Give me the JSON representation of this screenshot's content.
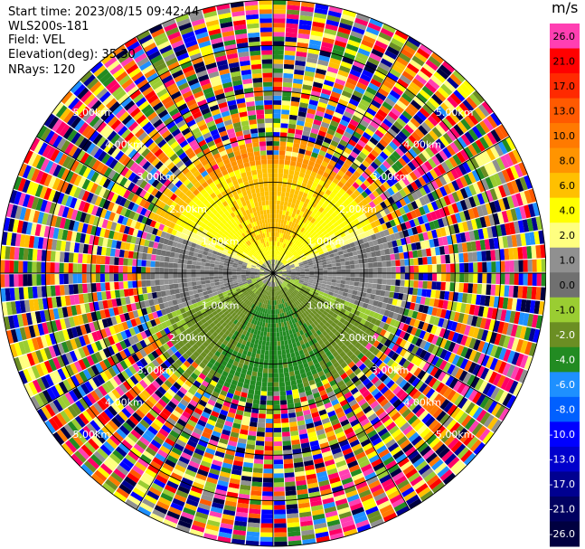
{
  "header": {
    "start_time": "Start time: 2023/08/15 09:42:44",
    "instrument": "WLS200s-181",
    "field": "Field: VEL",
    "elevation": "Elevation(deg): 35.30",
    "nrays": "NRays: 120"
  },
  "colorbar": {
    "unit": "m/s",
    "ticks": [
      "26.0",
      "21.0",
      "17.0",
      "13.0",
      "10.0",
      "8.0",
      "6.0",
      "4.0",
      "2.0",
      "1.0",
      "0.0",
      "-1.0",
      "-2.0",
      "-4.0",
      "-6.0",
      "-8.0",
      "-10.0",
      "-13.0",
      "-17.0",
      "-21.0",
      "-26.0",
      "-30.0"
    ],
    "colors": [
      "#ff3fb2",
      "#ff0000",
      "#ff2a00",
      "#ff5a00",
      "#ff7a00",
      "#ff9400",
      "#ffc000",
      "#ffff00",
      "#ffff80",
      "#909090",
      "#707070",
      "#9acd32",
      "#6b8e23",
      "#228b22",
      "#1e90ff",
      "#0060ff",
      "#0000ff",
      "#0000cc",
      "#000090",
      "#000060",
      "#000040"
    ]
  },
  "chart_data": {
    "type": "heatmap",
    "description_of_axes": "plan position indicator",
    "n_rays": 120,
    "max_range_km": 6.0,
    "rings_km": [
      1.0,
      2.0,
      3.0,
      4.0,
      5.0,
      6.0
    ],
    "spokes_deg": [
      0,
      30,
      60,
      90,
      120,
      150,
      180,
      210,
      240,
      270,
      300,
      330
    ],
    "range_labels": {
      "nw": [
        "1.00km",
        "2.00km",
        "3.00km",
        "4.00km",
        "5.00km"
      ],
      "ne": [
        "1.00km",
        "2.00km",
        "3.00km",
        "4.00km",
        "5.00km"
      ],
      "sw": [
        "1.00km",
        "2.00km",
        "3.00km",
        "4.00km",
        "5.00km"
      ],
      "se": [
        "1.00km",
        "2.00km",
        "3.00km",
        "4.00km",
        "5.00km"
      ]
    },
    "regions_m_s": [
      {
        "sector": "north",
        "range_km": [
          0,
          2.5
        ],
        "velocity": 2.0
      },
      {
        "sector": "north",
        "range_km": [
          2.5,
          3.0
        ],
        "velocity": 6.0
      },
      {
        "sector": "west",
        "range_km": [
          0.5,
          2.0
        ],
        "velocity": 0.0
      },
      {
        "sector": "east",
        "range_km": [
          0.5,
          2.0
        ],
        "velocity": 0.0
      },
      {
        "sector": "south",
        "range_km": [
          0,
          3.0
        ],
        "velocity": -2.0
      },
      {
        "sector": "all",
        "range_km": [
          3.0,
          6.0
        ],
        "velocity": "noise"
      }
    ]
  }
}
